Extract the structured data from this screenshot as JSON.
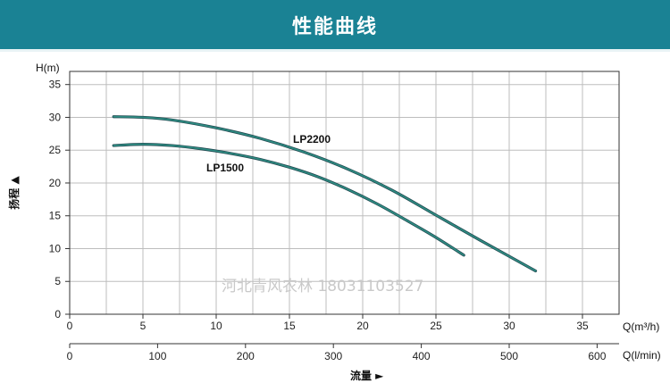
{
  "header": {
    "title": "性能曲线"
  },
  "chart_data": {
    "type": "line",
    "y_axis": {
      "label": "H(m)",
      "side_label": "扬程 ▲",
      "ticks": [
        0,
        5,
        10,
        15,
        20,
        25,
        30,
        35
      ],
      "ylim": [
        0,
        37
      ]
    },
    "x_axis": {
      "label": "Q(m³/h)",
      "ticks": [
        0,
        5,
        10,
        15,
        20,
        25,
        30,
        35
      ],
      "xlim": [
        0,
        37.5
      ]
    },
    "x_axis_2": {
      "label": "Q(l/min)",
      "bottom_label": "流量 ►",
      "ticks": [
        0,
        100,
        200,
        300,
        400,
        500,
        600
      ]
    },
    "grid": true,
    "series": [
      {
        "name": "LP2200",
        "color": "#2e8f84",
        "x": [
          3,
          5,
          7,
          10,
          13,
          16,
          19,
          22,
          25,
          28,
          31.8
        ],
        "y": [
          30.1,
          30.0,
          29.6,
          28.4,
          26.8,
          24.7,
          22.1,
          18.9,
          15.1,
          11.3,
          6.6
        ]
      },
      {
        "name": "LP1500",
        "color": "#2e8f84",
        "x": [
          3,
          5,
          7,
          9,
          11,
          13,
          15,
          17,
          19,
          21,
          23,
          25,
          26.9
        ],
        "y": [
          25.7,
          25.9,
          25.7,
          25.2,
          24.5,
          23.6,
          22.4,
          20.9,
          19.0,
          16.8,
          14.3,
          11.7,
          9.0
        ]
      }
    ],
    "watermark": "河北青风农林 18031103527"
  }
}
